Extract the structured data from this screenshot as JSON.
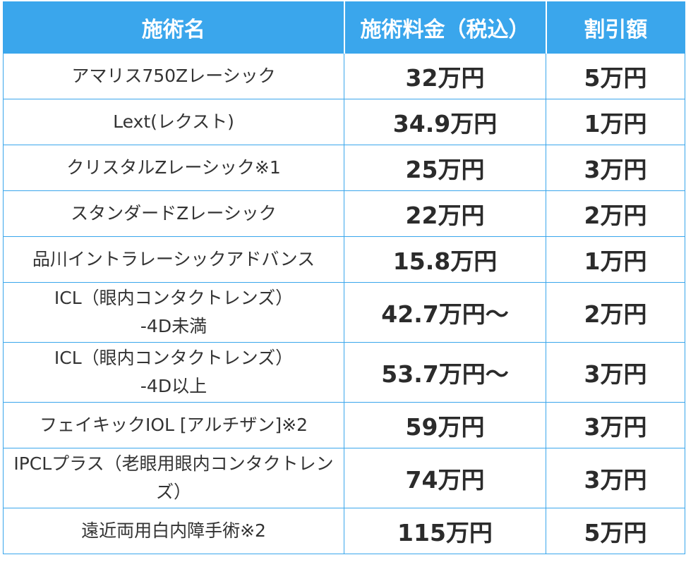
{
  "table": {
    "headers": [
      "施術名",
      "施術料金（税込）",
      "割引額"
    ],
    "rows": [
      {
        "name": [
          "アマリス750Zレーシック"
        ],
        "price": "32万円",
        "discount": "5万円"
      },
      {
        "name": [
          "Lext(レクスト)"
        ],
        "price": "34.9万円",
        "discount": "1万円"
      },
      {
        "name": [
          "クリスタルZレーシック※1"
        ],
        "price": "25万円",
        "discount": "3万円"
      },
      {
        "name": [
          "スタンダードZレーシック"
        ],
        "price": "22万円",
        "discount": "2万円"
      },
      {
        "name": [
          "品川イントラレーシックアドバンス"
        ],
        "price": "15.8万円",
        "discount": "1万円"
      },
      {
        "name": [
          "ICL（眼内コンタクトレンズ）",
          "-4D未満"
        ],
        "price": "42.7万円〜",
        "discount": "2万円"
      },
      {
        "name": [
          "ICL（眼内コンタクトレンズ）",
          "-4D以上"
        ],
        "price": "53.7万円〜",
        "discount": "3万円"
      },
      {
        "name": [
          "フェイキックIOL [アルチザン]※2"
        ],
        "price": "59万円",
        "discount": "3万円"
      },
      {
        "name": [
          "IPCLプラス（老眼用眼内コンタクトレン",
          "ズ）"
        ],
        "price": "74万円",
        "discount": "3万円"
      },
      {
        "name": [
          "遠近両用白内障手術※2"
        ],
        "price": "115万円",
        "discount": "5万円"
      }
    ]
  },
  "colors": {
    "header_bg": "#3aa6ec",
    "header_text": "#ffffff",
    "border": "#3aa6ec",
    "body_text": "#333333"
  }
}
